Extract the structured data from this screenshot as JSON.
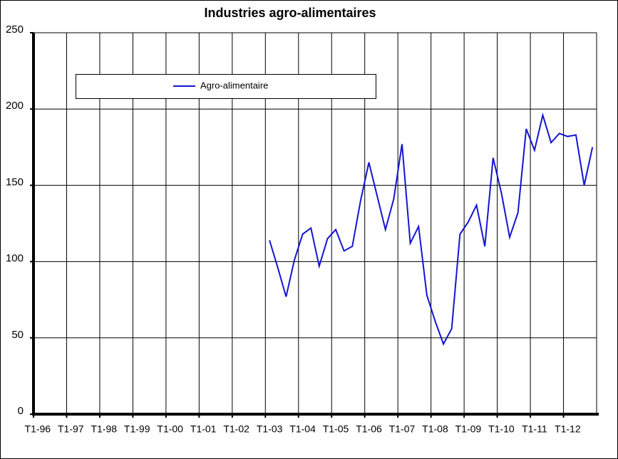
{
  "chart_data": {
    "type": "line",
    "title": "Industries agro-alimentaires",
    "categories": [
      "T1-96",
      null,
      null,
      null,
      "T1-97",
      null,
      null,
      null,
      "T1-98",
      null,
      null,
      null,
      "T1-99",
      null,
      null,
      null,
      "T1-00",
      null,
      null,
      null,
      "T1-01",
      null,
      null,
      null,
      "T1-02",
      null,
      null,
      null,
      "T1-03",
      null,
      null,
      null,
      "T1-04",
      null,
      null,
      null,
      "T1-05",
      null,
      null,
      null,
      "T1-06",
      null,
      null,
      null,
      "T1-07",
      null,
      null,
      null,
      "T1-08",
      null,
      null,
      null,
      "T1-09",
      null,
      null,
      null,
      "T1-10",
      null,
      null,
      null,
      "T1-11",
      null,
      null,
      null,
      "T1-12",
      null,
      null,
      null
    ],
    "series": [
      {
        "name": "Agro-alimentaire",
        "color": "#1414d2",
        "values": [
          null,
          null,
          null,
          null,
          null,
          null,
          null,
          null,
          null,
          null,
          null,
          null,
          null,
          null,
          null,
          null,
          null,
          null,
          null,
          null,
          null,
          null,
          null,
          null,
          null,
          null,
          null,
          null,
          114,
          96,
          77,
          101,
          118,
          122,
          97,
          115,
          121,
          107,
          110,
          140,
          165,
          143,
          121,
          141,
          177,
          112,
          123,
          78,
          61,
          46,
          56,
          118,
          126,
          137,
          110,
          168,
          145,
          116,
          132,
          187,
          173,
          196,
          178,
          184,
          182,
          183,
          150,
          175
        ]
      }
    ],
    "ylim": [
      0,
      250
    ],
    "yticks": [
      0,
      50,
      100,
      150,
      200,
      250
    ],
    "grid": true,
    "legend": "top-left"
  }
}
